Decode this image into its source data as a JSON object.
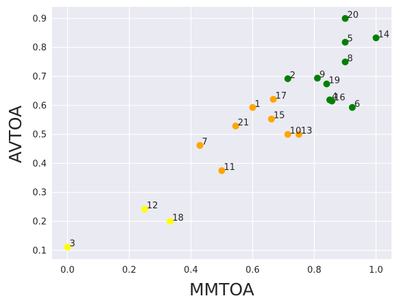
{
  "chart_data": {
    "type": "scatter",
    "title": "",
    "xlabel": "MMTOA",
    "ylabel": "AVTOA",
    "xlim": [
      -0.05,
      1.05
    ],
    "ylim": [
      0.07,
      0.94
    ],
    "xticks": [
      "0.0",
      "0.2",
      "0.4",
      "0.6",
      "0.8",
      "1.0"
    ],
    "yticks": [
      "0.1",
      "0.2",
      "0.3",
      "0.4",
      "0.5",
      "0.6",
      "0.7",
      "0.8",
      "0.9"
    ],
    "grid": true,
    "background": "#eaeaf2",
    "colors": {
      "green": "#008000",
      "orange": "#ffa500",
      "yellow": "#ffff00"
    },
    "points": [
      {
        "label": "1",
        "x": 0.6,
        "y": 0.593,
        "color": "orange"
      },
      {
        "label": "2",
        "x": 0.714,
        "y": 0.692,
        "color": "green"
      },
      {
        "label": "3",
        "x": 0.0,
        "y": 0.111,
        "color": "yellow"
      },
      {
        "label": "4",
        "x": 0.85,
        "y": 0.619,
        "color": "green"
      },
      {
        "label": "5",
        "x": 0.9,
        "y": 0.818,
        "color": "green"
      },
      {
        "label": "6",
        "x": 0.923,
        "y": 0.593,
        "color": "green"
      },
      {
        "label": "7",
        "x": 0.429,
        "y": 0.462,
        "color": "orange"
      },
      {
        "label": "8",
        "x": 0.9,
        "y": 0.75,
        "color": "green"
      },
      {
        "label": "9",
        "x": 0.81,
        "y": 0.694,
        "color": "green"
      },
      {
        "label": "10",
        "x": 0.714,
        "y": 0.5,
        "color": "orange"
      },
      {
        "label": "11",
        "x": 0.5,
        "y": 0.375,
        "color": "orange"
      },
      {
        "label": "12",
        "x": 0.25,
        "y": 0.242,
        "color": "yellow"
      },
      {
        "label": "13",
        "x": 0.75,
        "y": 0.5,
        "color": "orange"
      },
      {
        "label": "14",
        "x": 1.0,
        "y": 0.833,
        "color": "green"
      },
      {
        "label": "15",
        "x": 0.661,
        "y": 0.553,
        "color": "orange"
      },
      {
        "label": "16",
        "x": 0.857,
        "y": 0.615,
        "color": "green"
      },
      {
        "label": "17",
        "x": 0.667,
        "y": 0.621,
        "color": "orange"
      },
      {
        "label": "18",
        "x": 0.333,
        "y": 0.2,
        "color": "yellow"
      },
      {
        "label": "19",
        "x": 0.84,
        "y": 0.674,
        "color": "green"
      },
      {
        "label": "20",
        "x": 0.9,
        "y": 0.9,
        "color": "green"
      },
      {
        "label": "21",
        "x": 0.545,
        "y": 0.529,
        "color": "orange"
      }
    ]
  }
}
